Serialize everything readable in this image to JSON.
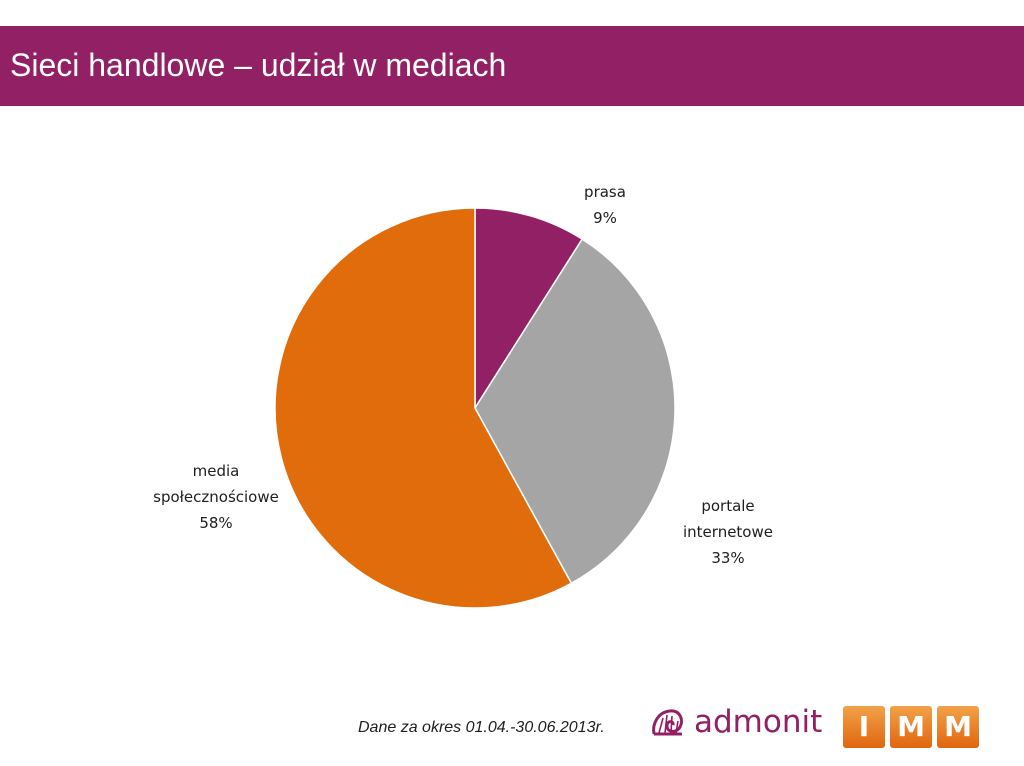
{
  "slide": {
    "title": "Sieci handlowe – udział w mediach",
    "header_color": "#922065"
  },
  "chart_data": {
    "type": "pie",
    "title": "",
    "start_angle": "12 o'clock, clockwise",
    "slices": [
      {
        "label_lines": [
          "prasa"
        ],
        "value": 9,
        "value_label": "9%",
        "color": "#922065"
      },
      {
        "label_lines": [
          "portale",
          "internetowe"
        ],
        "value": 33,
        "value_label": "33%",
        "color": "#a5a5a5"
      },
      {
        "label_lines": [
          "media",
          "społecznościowe"
        ],
        "value": 58,
        "value_label": "58%",
        "color": "#e06c0c"
      }
    ]
  },
  "footer": {
    "note": "Dane za okres 01.04.-30.06.2013r.",
    "logo_admonit": "admonit",
    "logo_imm_letters": [
      "I",
      "M",
      "M"
    ],
    "icons": [
      "admonit-shell-icon"
    ]
  }
}
